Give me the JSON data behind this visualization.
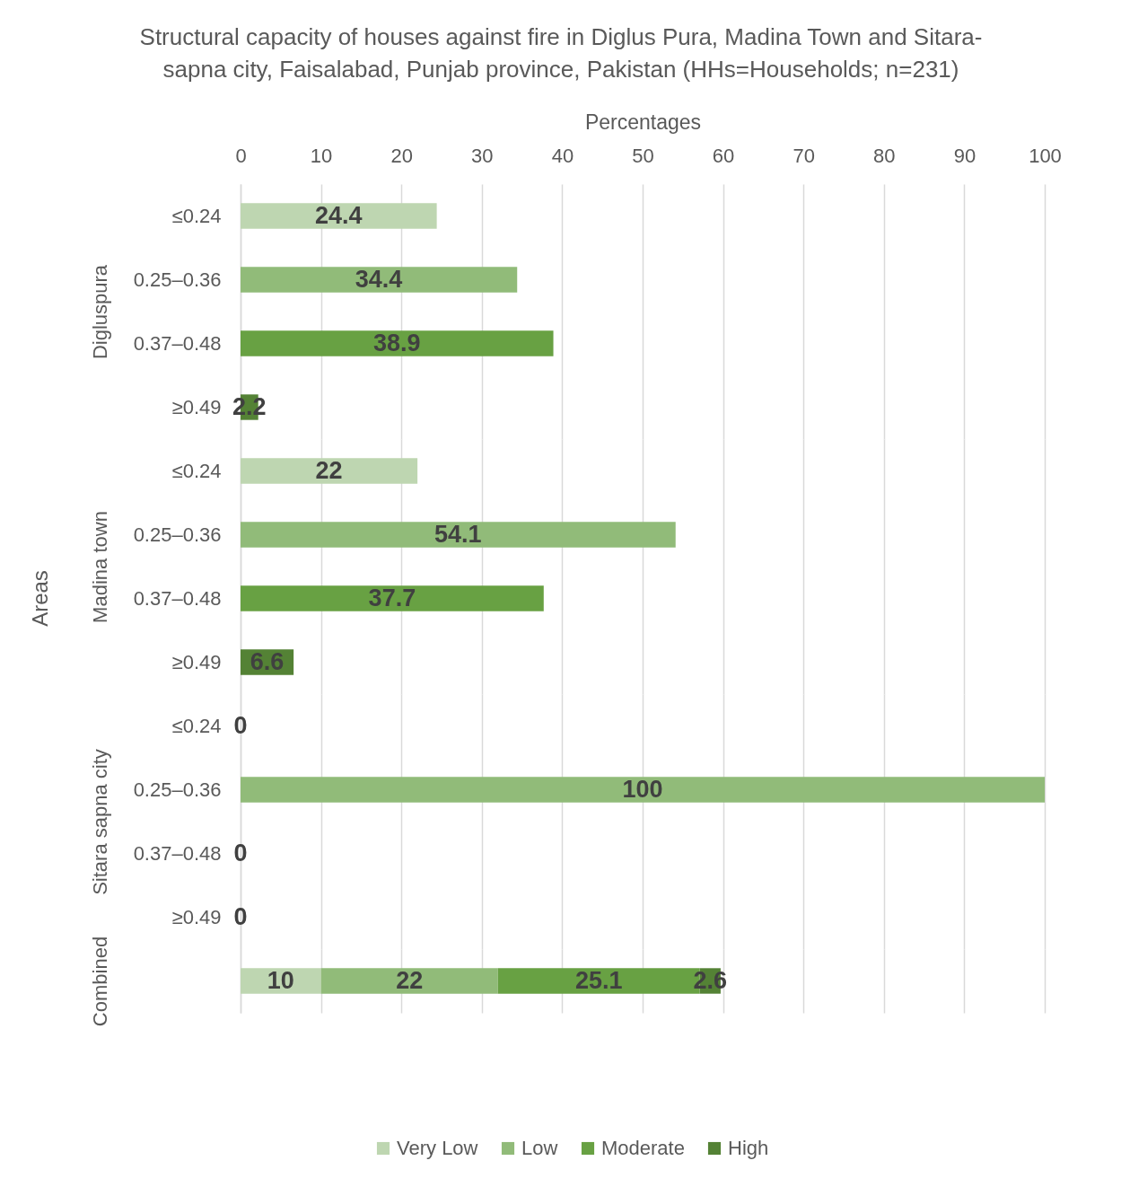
{
  "chart_data": [
    {
      "type": "bar",
      "orientation": "horizontal",
      "stacked": true,
      "title": "Structural capacity of houses against fire in Diglus Pura, Madina Town and Sitara-sapna city, Faisalabad, Punjab province, Pakistan (HHs=Households; n=231)",
      "xlabel": "Percentages",
      "ylabel": "Digluspura",
      "annotations": [
        "Areas"
      ],
      "categories": [
        "≤0.24",
        "0.25–0.36",
        "0.37–0.48",
        "≥0.49"
      ],
      "series": [
        {
          "name": "Very Low",
          "color": "#bed6b1",
          "values": [
            24.4,
            null,
            null,
            null
          ]
        },
        {
          "name": "Low",
          "color": "#91bb79",
          "values": [
            null,
            34.4,
            null,
            null
          ]
        },
        {
          "name": "Moderate",
          "color": "#68a143",
          "values": [
            null,
            null,
            38.9,
            null
          ]
        },
        {
          "name": "High",
          "color": "#548235",
          "values": [
            null,
            null,
            null,
            2.2
          ]
        }
      ],
      "xlim": [
        0,
        100
      ],
      "xticks": [
        0,
        10,
        20,
        30,
        40,
        50,
        60,
        70,
        80,
        90,
        100
      ],
      "grid": "x",
      "data_labels": true,
      "legend": "bottom"
    },
    {
      "type": "bar",
      "orientation": "horizontal",
      "stacked": true,
      "ylabel": "Madina town",
      "categories": [
        "≤0.24",
        "0.25–0.36",
        "0.37–0.48",
        "≥0.49"
      ],
      "series": [
        {
          "name": "Very Low",
          "color": "#bed6b1",
          "values": [
            22,
            null,
            null,
            null
          ]
        },
        {
          "name": "Low",
          "color": "#91bb79",
          "values": [
            null,
            54.1,
            null,
            null
          ]
        },
        {
          "name": "Moderate",
          "color": "#68a143",
          "values": [
            null,
            null,
            37.7,
            null
          ]
        },
        {
          "name": "High",
          "color": "#548235",
          "values": [
            null,
            null,
            null,
            6.6
          ]
        }
      ],
      "xlim": [
        0,
        100
      ],
      "xticks": [
        0,
        10,
        20,
        30,
        40,
        50,
        60,
        70,
        80,
        90,
        100
      ],
      "grid": "x",
      "tick_labels": "y",
      "data_labels": true
    },
    {
      "type": "bar",
      "orientation": "horizontal",
      "stacked": true,
      "ylabel": "Sitara sapna city",
      "categories": [
        "≤0.24",
        "0.25–0.36",
        "0.37–0.48",
        "≥0.49"
      ],
      "series": [
        {
          "name": "Very Low",
          "color": "#bed6b1",
          "values": [
            0,
            null,
            null,
            null
          ]
        },
        {
          "name": "Low",
          "color": "#91bb79",
          "values": [
            null,
            100,
            null,
            null
          ]
        },
        {
          "name": "Moderate",
          "color": "#68a143",
          "values": [
            null,
            null,
            0,
            null
          ]
        },
        {
          "name": "High",
          "color": "#548235",
          "values": [
            null,
            null,
            null,
            0
          ]
        }
      ],
      "xlim": [
        0,
        100
      ],
      "xticks": [
        0,
        10,
        20,
        30,
        40,
        50,
        60,
        70,
        80,
        90,
        100
      ],
      "grid": "x",
      "tick_labels": "y",
      "data_labels": true
    },
    {
      "type": "bar",
      "orientation": "horizontal",
      "stacked": true,
      "ylabel": "Combined",
      "categories": [
        null
      ],
      "series": [
        {
          "name": "Very Low",
          "color": "#bed6b1",
          "values": [
            10
          ]
        },
        {
          "name": "Low",
          "color": "#91bb79",
          "values": [
            22
          ]
        },
        {
          "name": "Moderate",
          "color": "#68a143",
          "values": [
            25.1
          ]
        },
        {
          "name": "High",
          "color": "#548235",
          "values": [
            2.6
          ]
        }
      ],
      "xlim": [
        0,
        100
      ],
      "xticks": [
        0,
        10,
        20,
        30,
        40,
        50,
        60,
        70,
        80,
        90,
        100
      ],
      "grid": "x",
      "tick_labels": false,
      "data_labels": true
    }
  ]
}
